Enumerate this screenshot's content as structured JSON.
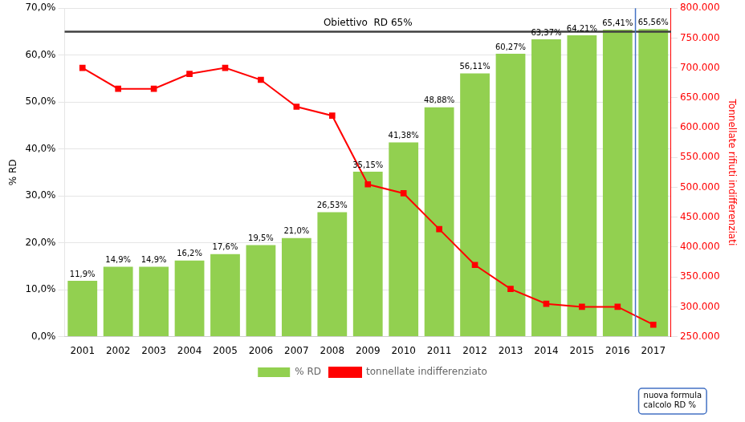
{
  "chart_data": {
    "type": "bar",
    "categories": [
      2001,
      2002,
      2003,
      2004,
      2005,
      2006,
      2007,
      2008,
      2009,
      2010,
      2011,
      2012,
      2013,
      2014,
      2015,
      2016,
      2017
    ],
    "series": [
      {
        "name": "% RD",
        "type": "bar",
        "color": "#92d050",
        "values": [
          11.9,
          14.9,
          14.9,
          16.2,
          17.6,
          19.5,
          21.0,
          26.53,
          35.15,
          41.38,
          48.88,
          56.11,
          60.27,
          63.37,
          64.21,
          65.41,
          65.56
        ],
        "value_labels": [
          "11,9%",
          "14,9%",
          "14,9%",
          "16,2%",
          "17,6%",
          "19,5%",
          "21,0%",
          "26,53%",
          "35,15%",
          "41,38%",
          "48,88%",
          "56,11%",
          "60,27%",
          "63,37%",
          "64,21%",
          "65,41%",
          "65,56%"
        ]
      },
      {
        "name": "tonnellate indifferenziato",
        "type": "line",
        "color": "#ff0000",
        "marker": "square",
        "axis": "y2",
        "values": [
          700000,
          665000,
          665000,
          690000,
          700000,
          680000,
          635000,
          620000,
          505000,
          490000,
          430000,
          370000,
          330000,
          305000,
          300000,
          300000,
          270000
        ]
      }
    ],
    "ylabel": "% RD",
    "y2label": "Tonnellate rifiuti indifferenziati",
    "ylim": [
      0,
      70
    ],
    "yticks": [
      {
        "value": 0,
        "label": "0,0%"
      },
      {
        "value": 10,
        "label": "10,0%"
      },
      {
        "value": 20,
        "label": "20,0%"
      },
      {
        "value": 30,
        "label": "30,0%"
      },
      {
        "value": 40,
        "label": "40,0%"
      },
      {
        "value": 50,
        "label": "50,0%"
      },
      {
        "value": 60,
        "label": "60,0%"
      },
      {
        "value": 70,
        "label": "70,0%"
      }
    ],
    "y2lim": [
      250000,
      800000
    ],
    "y2ticks": [
      {
        "value": 250000,
        "label": "250.000"
      },
      {
        "value": 300000,
        "label": "300.000"
      },
      {
        "value": 350000,
        "label": "350.000"
      },
      {
        "value": 400000,
        "label": "400.000"
      },
      {
        "value": 450000,
        "label": "450.000"
      },
      {
        "value": 500000,
        "label": "500.000"
      },
      {
        "value": 550000,
        "label": "550.000"
      },
      {
        "value": 600000,
        "label": "600.000"
      },
      {
        "value": 650000,
        "label": "650.000"
      },
      {
        "value": 700000,
        "label": "700.000"
      },
      {
        "value": 750000,
        "label": "750.000"
      },
      {
        "value": 800000,
        "label": "800.000"
      }
    ],
    "grid": true,
    "legend": "bottom",
    "data_labels": true,
    "annotations": [
      {
        "type": "hline",
        "y": 65.0,
        "label": "Obiettivo  RD 65%",
        "color": "#404040"
      },
      {
        "type": "vline",
        "x": 2016.5,
        "label": "nuova formula\ncalcolo RD %",
        "color": "#4472c4"
      }
    ]
  }
}
